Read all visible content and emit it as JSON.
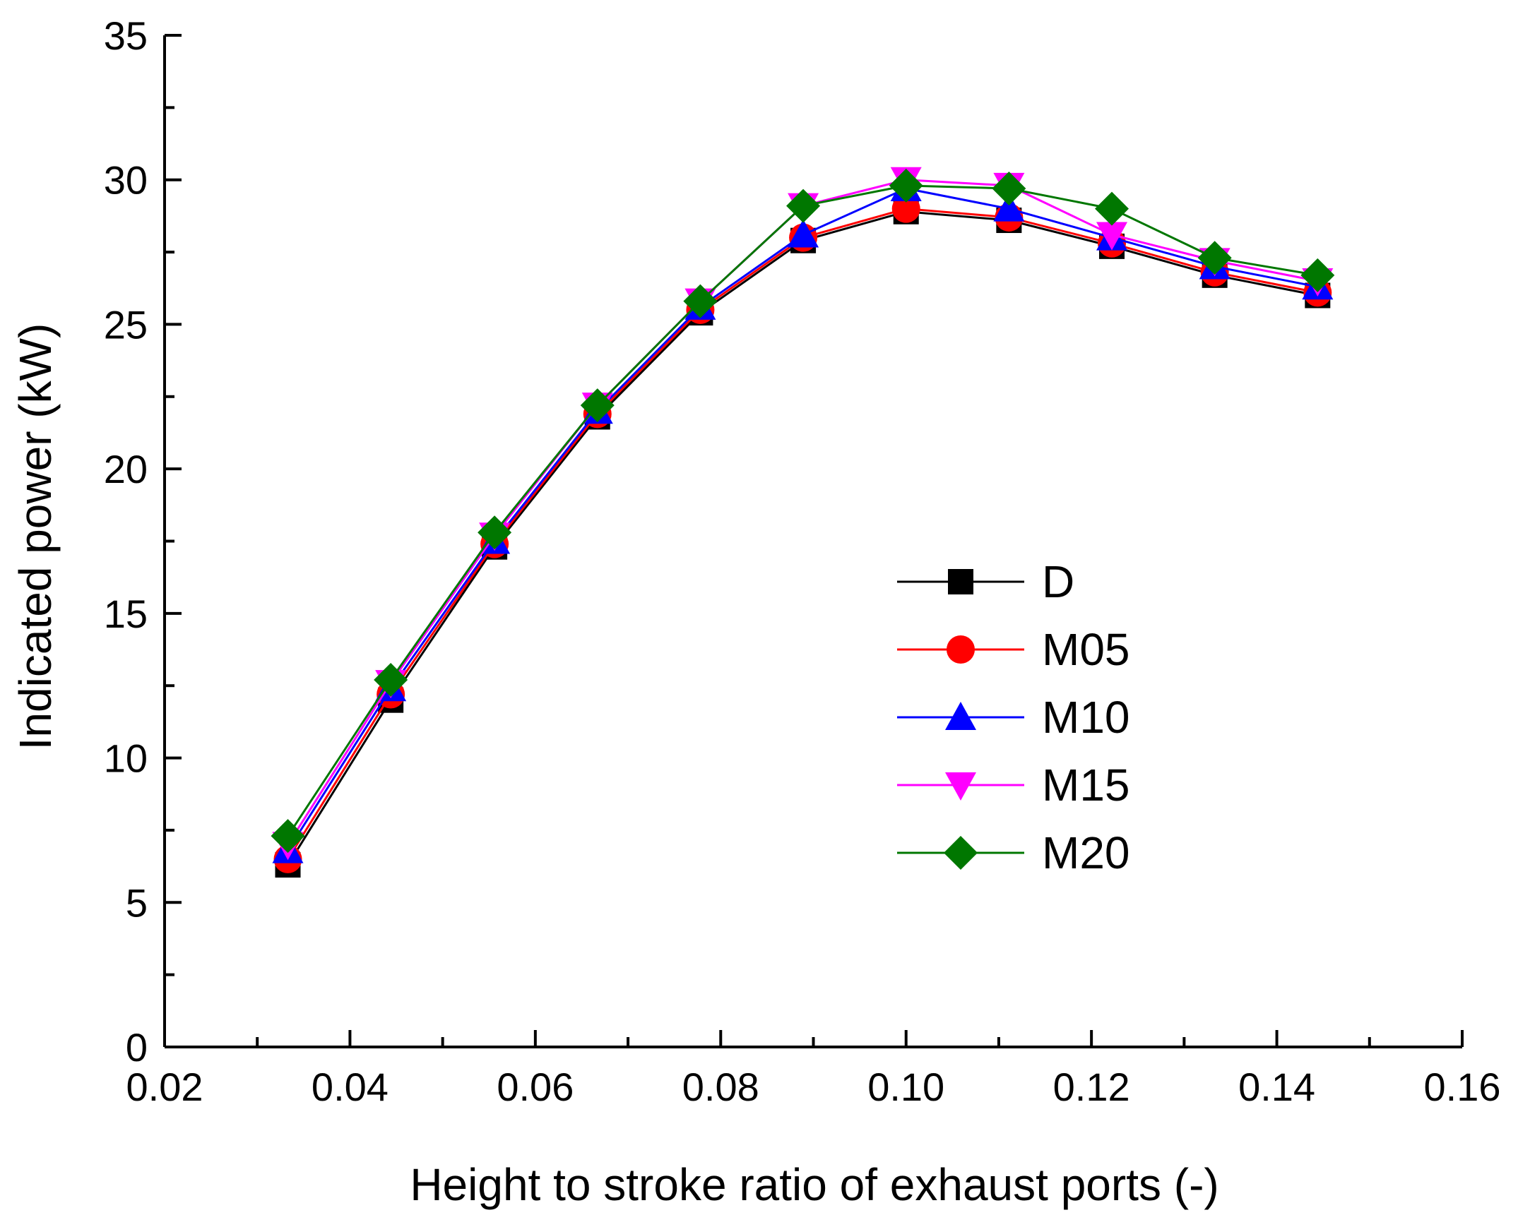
{
  "chart_data": {
    "type": "line",
    "title": "",
    "xlabel": "Height to stroke ratio of exhaust ports (-)",
    "ylabel": "Indicated power (kW)",
    "xlim": [
      0.02,
      0.16
    ],
    "ylim": [
      0,
      35
    ],
    "x_ticks": [
      "0.02",
      "0.04",
      "0.06",
      "0.08",
      "0.10",
      "0.12",
      "0.14",
      "0.16"
    ],
    "y_ticks": [
      "0",
      "5",
      "10",
      "15",
      "20",
      "25",
      "30",
      "35"
    ],
    "grid": false,
    "legend_position": "center-right",
    "x": [
      0.0333,
      0.0444,
      0.0556,
      0.0667,
      0.0778,
      0.0889,
      0.1,
      0.1111,
      0.1222,
      0.1333,
      0.1444
    ],
    "series": [
      {
        "name": "D",
        "color": "#000000",
        "marker": "square",
        "values": [
          6.3,
          12.0,
          17.3,
          21.8,
          25.4,
          27.9,
          28.9,
          28.6,
          27.7,
          26.7,
          26.0
        ]
      },
      {
        "name": "M05",
        "color": "#ff0000",
        "marker": "circle",
        "values": [
          6.5,
          12.2,
          17.4,
          21.9,
          25.5,
          28.0,
          29.0,
          28.7,
          27.8,
          26.8,
          26.1
        ]
      },
      {
        "name": "M10",
        "color": "#0000ff",
        "marker": "triangle-up",
        "values": [
          6.8,
          12.4,
          17.5,
          22.0,
          25.6,
          28.1,
          29.7,
          29.0,
          28.0,
          27.0,
          26.3
        ]
      },
      {
        "name": "M15",
        "color": "#ff00ff",
        "marker": "triangle-down",
        "values": [
          7.0,
          12.6,
          17.7,
          22.2,
          25.8,
          29.1,
          30.0,
          29.8,
          28.1,
          27.2,
          26.5
        ]
      },
      {
        "name": "M20",
        "color": "#007700",
        "marker": "diamond",
        "values": [
          7.3,
          12.7,
          17.8,
          22.2,
          25.8,
          29.1,
          29.8,
          29.7,
          29.0,
          27.3,
          26.7
        ]
      }
    ]
  }
}
